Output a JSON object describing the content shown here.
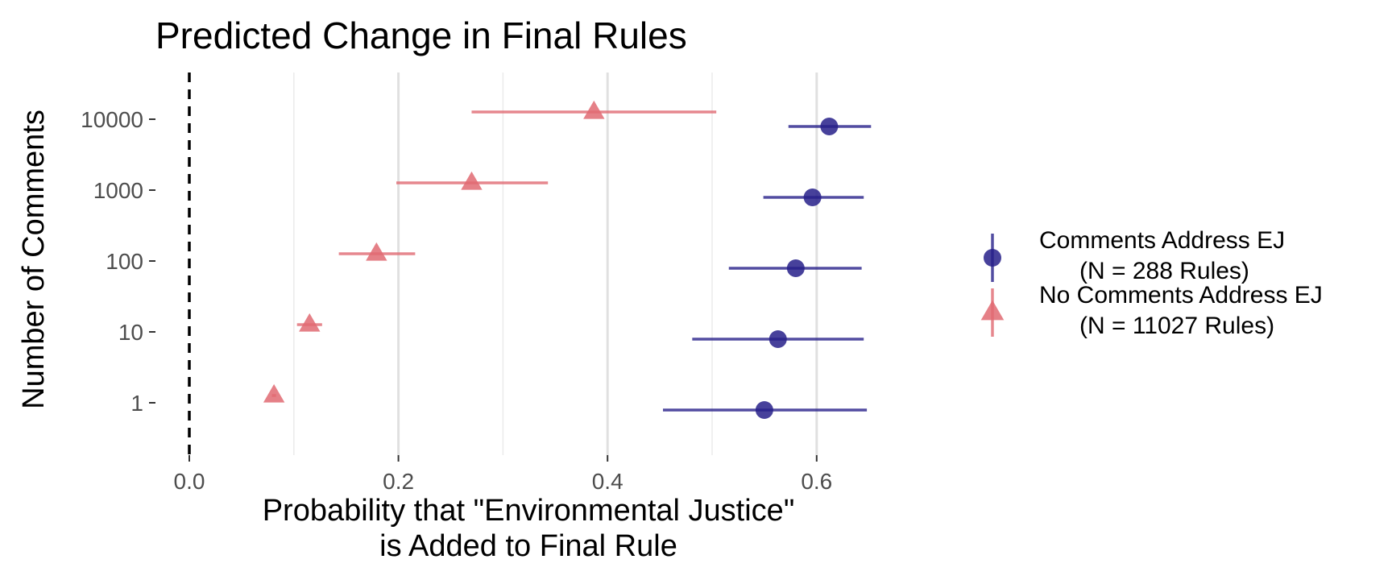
{
  "chart_data": {
    "type": "scatter",
    "title": "Predicted Change in Final Rules",
    "xlabel_lines": [
      "Probability that \"Environmental Justice\"",
      "is Added to Final Rule"
    ],
    "ylabel": "Number of Comments",
    "xlim": [
      0.0,
      0.66
    ],
    "x_ticks": [
      0.0,
      0.2,
      0.4,
      0.6
    ],
    "x_tick_labels": [
      "0.0",
      "0.2",
      "0.4",
      "0.6"
    ],
    "x_minor_gridlines": [
      0.1,
      0.3,
      0.5
    ],
    "y_categories": [
      "1",
      "10",
      "100",
      "1000",
      "10000"
    ],
    "y_scale": "log10",
    "reference_line": {
      "x": 0.0,
      "style": "dashed"
    },
    "grid": "vertical only",
    "legend_position": "right",
    "series": [
      {
        "name": "Comments Address EJ",
        "name_note": "(N = 288 Rules)",
        "marker": "circle",
        "color": "#27208a",
        "points": [
          {
            "y": "1",
            "x": 0.55,
            "lo": 0.453,
            "hi": 0.648
          },
          {
            "y": "10",
            "x": 0.563,
            "lo": 0.481,
            "hi": 0.645
          },
          {
            "y": "100",
            "x": 0.58,
            "lo": 0.516,
            "hi": 0.643
          },
          {
            "y": "1000",
            "x": 0.596,
            "lo": 0.549,
            "hi": 0.645
          },
          {
            "y": "10000",
            "x": 0.612,
            "lo": 0.573,
            "hi": 0.652
          }
        ]
      },
      {
        "name": "No Comments Address EJ",
        "name_note": "(N = 11027 Rules)",
        "marker": "triangle",
        "color": "#e06a72",
        "points": [
          {
            "y": "1",
            "x": 0.081,
            "lo": 0.079,
            "hi": 0.083
          },
          {
            "y": "10",
            "x": 0.115,
            "lo": 0.103,
            "hi": 0.127
          },
          {
            "y": "100",
            "x": 0.179,
            "lo": 0.143,
            "hi": 0.216
          },
          {
            "y": "1000",
            "x": 0.27,
            "lo": 0.198,
            "hi": 0.343
          },
          {
            "y": "10000",
            "x": 0.387,
            "lo": 0.27,
            "hi": 0.504
          }
        ]
      }
    ]
  }
}
